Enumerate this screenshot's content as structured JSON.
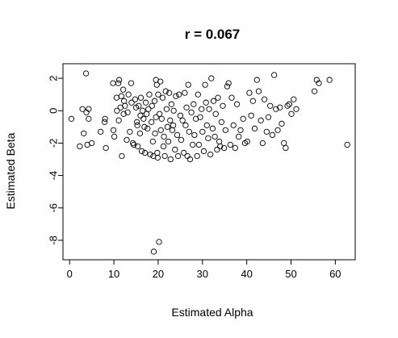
{
  "chart_data": {
    "type": "scatter",
    "title": "r = 0.067",
    "xlabel": "Estimated Alpha",
    "ylabel": "Estimated Beta",
    "xlim": [
      -1.5,
      64.5
    ],
    "ylim": [
      -9.2,
      2.9
    ],
    "xticks": [
      0,
      10,
      20,
      30,
      40,
      50,
      60
    ],
    "yticks": [
      -8,
      -6,
      -4,
      -2,
      0,
      2
    ],
    "grid": false,
    "legend": "none",
    "points": [
      [
        0.4,
        -0.5
      ],
      [
        2.3,
        -2.2
      ],
      [
        2.9,
        0.1
      ],
      [
        3.2,
        -1.4
      ],
      [
        3.7,
        2.3
      ],
      [
        3.8,
        -0.1
      ],
      [
        4.0,
        -2.1
      ],
      [
        4.3,
        -0.5
      ],
      [
        4.3,
        0.1
      ],
      [
        5.0,
        -2.0
      ],
      [
        7.0,
        -1.3
      ],
      [
        7.9,
        -0.7
      ],
      [
        8.0,
        -0.5
      ],
      [
        8.2,
        -2.3
      ],
      [
        9.8,
        1.7
      ],
      [
        9.9,
        -1.2
      ],
      [
        10.1,
        -1.6
      ],
      [
        10.6,
        0.8
      ],
      [
        10.7,
        0.0
      ],
      [
        11.0,
        1.7
      ],
      [
        11.1,
        -0.6
      ],
      [
        11.2,
        1.9
      ],
      [
        11.5,
        0.2
      ],
      [
        11.7,
        0.9
      ],
      [
        11.8,
        -2.8
      ],
      [
        12.1,
        1.3
      ],
      [
        12.2,
        -0.2
      ],
      [
        12.3,
        0.6
      ],
      [
        12.5,
        0.3
      ],
      [
        12.9,
        -1.8
      ],
      [
        13.1,
        -0.1
      ],
      [
        13.3,
        1.0
      ],
      [
        13.6,
        -1.3
      ],
      [
        13.9,
        1.7
      ],
      [
        14.0,
        0.5
      ],
      [
        14.3,
        -2.0
      ],
      [
        14.5,
        -2.1
      ],
      [
        14.8,
        0.7
      ],
      [
        15.0,
        0.2
      ],
      [
        15.2,
        -0.7
      ],
      [
        15.3,
        -0.9
      ],
      [
        15.4,
        -2.2
      ],
      [
        15.6,
        0.3
      ],
      [
        15.9,
        -1.4
      ],
      [
        16.0,
        -0.3
      ],
      [
        16.1,
        0.8
      ],
      [
        16.3,
        -2.5
      ],
      [
        16.5,
        0.0
      ],
      [
        16.7,
        -0.5
      ],
      [
        16.9,
        -1.0
      ],
      [
        17.0,
        -2.6
      ],
      [
        17.2,
        0.5
      ],
      [
        17.4,
        -0.2
      ],
      [
        17.6,
        -1.1
      ],
      [
        17.8,
        0.1
      ],
      [
        18.0,
        1.0
      ],
      [
        18.2,
        -2.7
      ],
      [
        18.5,
        -0.7
      ],
      [
        18.6,
        0.3
      ],
      [
        18.8,
        -1.9
      ],
      [
        18.9,
        -2.8
      ],
      [
        19.0,
        -8.7
      ],
      [
        19.2,
        0.6
      ],
      [
        19.3,
        -1.4
      ],
      [
        19.5,
        1.9
      ],
      [
        19.5,
        -0.4
      ],
      [
        19.7,
        1.6
      ],
      [
        19.8,
        -2.6
      ],
      [
        19.9,
        -2.9
      ],
      [
        20.0,
        1.0
      ],
      [
        20.2,
        -8.1
      ],
      [
        20.3,
        -0.2
      ],
      [
        20.5,
        1.8
      ],
      [
        20.6,
        -1.2
      ],
      [
        20.8,
        -0.5
      ],
      [
        21.0,
        0.8
      ],
      [
        21.2,
        -2.2
      ],
      [
        21.3,
        -1.6
      ],
      [
        21.5,
        -2.8
      ],
      [
        21.7,
        1.2
      ],
      [
        21.9,
        0.1
      ],
      [
        22.1,
        -1.0
      ],
      [
        22.3,
        -1.9
      ],
      [
        22.5,
        1.1
      ],
      [
        22.7,
        -0.6
      ],
      [
        22.8,
        -3.0
      ],
      [
        23.0,
        0.4
      ],
      [
        23.2,
        -1.2
      ],
      [
        23.4,
        -0.9
      ],
      [
        23.5,
        0.0
      ],
      [
        23.8,
        -2.4
      ],
      [
        24.0,
        0.9
      ],
      [
        24.3,
        -1.5
      ],
      [
        24.5,
        -2.8
      ],
      [
        24.7,
        1.0
      ],
      [
        25.0,
        -0.3
      ],
      [
        25.2,
        -1.8
      ],
      [
        25.5,
        -0.6
      ],
      [
        25.8,
        -2.6
      ],
      [
        26.0,
        1.1
      ],
      [
        26.2,
        -0.9
      ],
      [
        26.4,
        0.2
      ],
      [
        26.6,
        -2.8
      ],
      [
        26.8,
        1.6
      ],
      [
        27.0,
        -1.3
      ],
      [
        27.2,
        -3.0
      ],
      [
        27.5,
        -0.1
      ],
      [
        27.8,
        -2.1
      ],
      [
        28.0,
        0.4
      ],
      [
        28.2,
        -1.5
      ],
      [
        28.5,
        -0.5
      ],
      [
        28.8,
        -2.8
      ],
      [
        29.0,
        1.0
      ],
      [
        29.2,
        -2.1
      ],
      [
        29.5,
        -0.4
      ],
      [
        29.8,
        0.1
      ],
      [
        30.0,
        -1.3
      ],
      [
        30.3,
        -2.5
      ],
      [
        30.6,
        1.6
      ],
      [
        30.8,
        0.5
      ],
      [
        31.0,
        -0.9
      ],
      [
        31.3,
        -1.7
      ],
      [
        31.5,
        0.1
      ],
      [
        31.8,
        -2.7
      ],
      [
        32.0,
        2.0
      ],
      [
        32.3,
        -1.1
      ],
      [
        32.5,
        0.6
      ],
      [
        32.8,
        -1.6
      ],
      [
        33.0,
        -0.2
      ],
      [
        33.3,
        -2.4
      ],
      [
        33.5,
        0.8
      ],
      [
        33.8,
        -1.9
      ],
      [
        34.0,
        -2.2
      ],
      [
        34.3,
        -0.7
      ],
      [
        34.6,
        0.3
      ],
      [
        34.9,
        -2.3
      ],
      [
        35.2,
        -1.2
      ],
      [
        35.6,
        1.5
      ],
      [
        35.9,
        1.7
      ],
      [
        36.3,
        -2.1
      ],
      [
        36.6,
        0.8
      ],
      [
        37.0,
        -0.9
      ],
      [
        37.4,
        -2.3
      ],
      [
        37.8,
        0.4
      ],
      [
        38.2,
        -1.6
      ],
      [
        38.6,
        -1.2
      ],
      [
        39.2,
        -0.5
      ],
      [
        39.6,
        -2.0
      ],
      [
        40.1,
        -1.9
      ],
      [
        40.6,
        1.1
      ],
      [
        41.0,
        -0.3
      ],
      [
        41.4,
        0.6
      ],
      [
        41.8,
        -1.1
      ],
      [
        42.3,
        1.9
      ],
      [
        42.7,
        1.2
      ],
      [
        43.2,
        -0.6
      ],
      [
        43.6,
        -2.0
      ],
      [
        44.0,
        0.7
      ],
      [
        44.5,
        -1.3
      ],
      [
        44.9,
        -0.4
      ],
      [
        45.3,
        0.3
      ],
      [
        45.8,
        -1.5
      ],
      [
        46.2,
        2.2
      ],
      [
        46.6,
        0.1
      ],
      [
        47.0,
        -1.2
      ],
      [
        47.5,
        0.2
      ],
      [
        47.9,
        -0.8
      ],
      [
        48.4,
        -2.0
      ],
      [
        48.8,
        -2.3
      ],
      [
        49.2,
        0.3
      ],
      [
        49.6,
        0.4
      ],
      [
        50.1,
        -0.2
      ],
      [
        50.6,
        0.7
      ],
      [
        51.2,
        0.1
      ],
      [
        55.3,
        1.2
      ],
      [
        55.8,
        1.9
      ],
      [
        56.3,
        1.7
      ],
      [
        58.7,
        1.9
      ],
      [
        62.7,
        -2.1
      ]
    ]
  }
}
